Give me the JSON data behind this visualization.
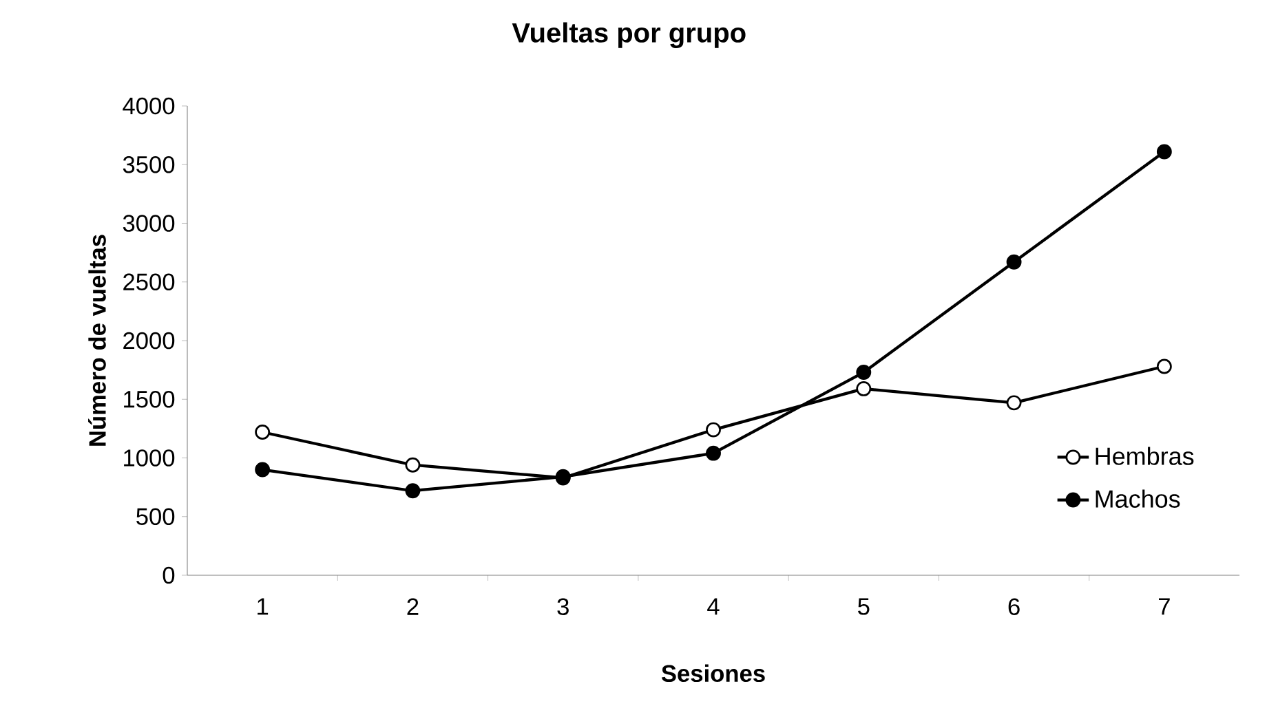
{
  "chart_data": {
    "type": "line",
    "title": "Vueltas por grupo",
    "xlabel": "Sesiones",
    "ylabel": "Número de vueltas",
    "categories": [
      "1",
      "2",
      "3",
      "4",
      "5",
      "6",
      "7"
    ],
    "series": [
      {
        "name": "Hembras",
        "color": "#000000",
        "values": [
          1220,
          940,
          830,
          1240,
          1590,
          1470,
          1780
        ]
      },
      {
        "name": "Machos",
        "color": "#000000",
        "values": [
          900,
          720,
          840,
          1040,
          1730,
          2670,
          3610
        ]
      }
    ],
    "ylim": [
      0,
      4000
    ],
    "yticks": [
      0,
      500,
      1000,
      1500,
      2000,
      2500,
      3000,
      3500,
      4000
    ],
    "grid": false,
    "legend": "right",
    "marker": "circle",
    "line_style": "solid"
  }
}
